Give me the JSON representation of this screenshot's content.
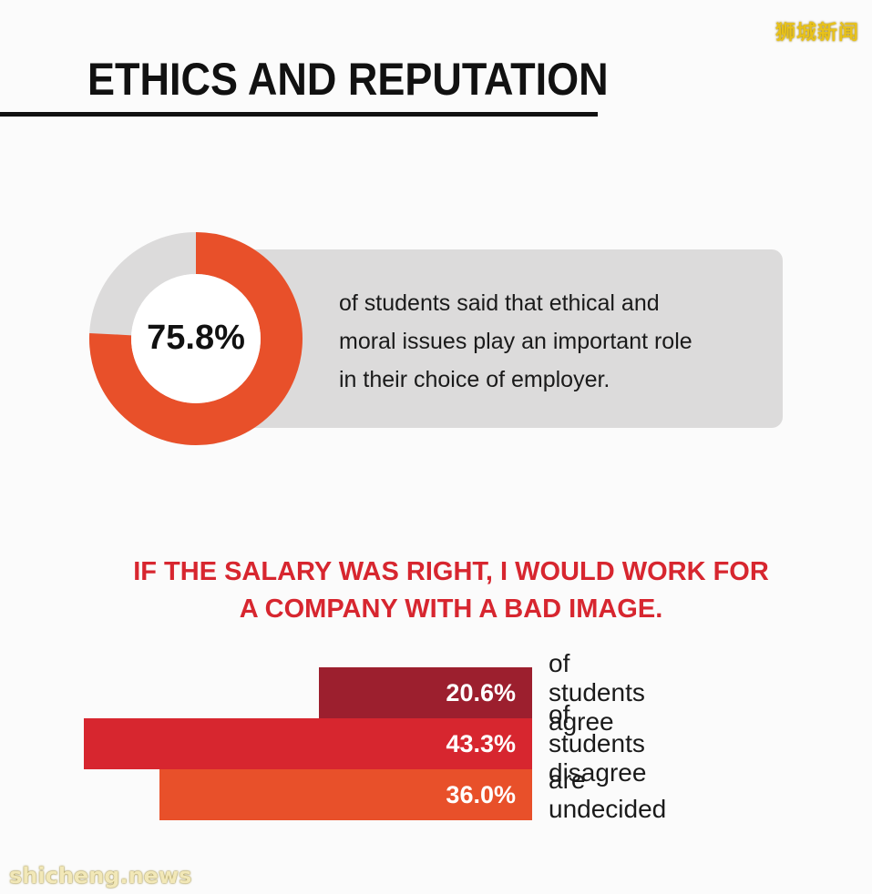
{
  "watermark_top": "狮城新闻",
  "watermark_bottom": "shicheng.news",
  "header": {
    "title": "ETHICS AND REPUTATION"
  },
  "stat": {
    "value_label": "75.8%",
    "lines": [
      "of students said that ethical and",
      "moral issues play an important role",
      "in their choice of employer."
    ]
  },
  "colors": {
    "donut_fill": "#e8502a",
    "donut_track": "#dcdbdb",
    "agree": "#9c1f2e",
    "disagree": "#d7262f",
    "undecided": "#e8502a",
    "subtitle": "#d7262f"
  },
  "question": {
    "lines": [
      "IF THE SALARY WAS RIGHT, I WOULD WORK FOR",
      "A COMPANY WITH A BAD IMAGE."
    ]
  },
  "chart_data": [
    {
      "type": "pie",
      "values": [
        75.8,
        24.2
      ],
      "data_label": "75.8%"
    },
    {
      "type": "bar",
      "orientation": "horizontal",
      "categories": [
        "of students agree",
        "of students disagree",
        "are undecided"
      ],
      "values": [
        20.6,
        43.3,
        36.0
      ],
      "data_labels": [
        "20.6%",
        "43.3%",
        "36.0%"
      ]
    }
  ]
}
